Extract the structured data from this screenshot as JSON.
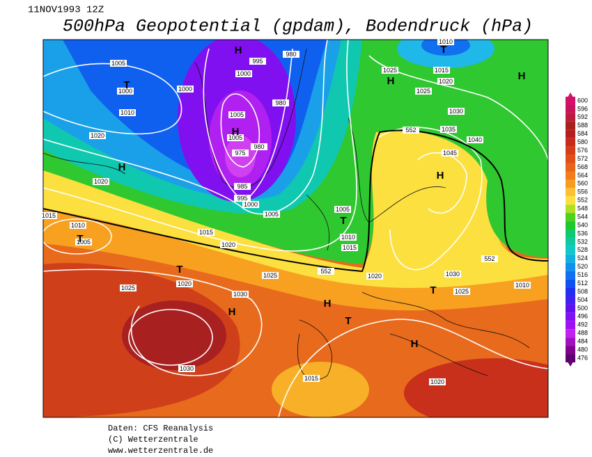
{
  "header": {
    "date": "11NOV1993 12Z",
    "title": "500hPa Geopotential (gpdam), Bodendruck (hPa)"
  },
  "map": {
    "isobar_labels": [
      1005,
      1000,
      1000,
      1010,
      1020,
      1020,
      1015,
      1010,
      1005,
      995,
      980,
      1000,
      980,
      1005,
      1005,
      980,
      975,
      985,
      995,
      1000,
      1005,
      1015,
      1020,
      1025,
      1020,
      1025,
      1030,
      1030,
      1015,
      1020,
      552,
      1005,
      1010,
      1015,
      1025,
      1015,
      1020,
      1025,
      1030,
      1035,
      1040,
      1045,
      552,
      1020,
      1030,
      1025,
      1010,
      552,
      1010
    ],
    "centers": [
      "H",
      "T",
      "H",
      "H",
      "T",
      "T",
      "H",
      "H",
      "T",
      "H",
      "T",
      "H",
      "T",
      "H",
      "T",
      "H"
    ]
  },
  "colorbar": {
    "levels": [
      600,
      596,
      592,
      588,
      584,
      580,
      576,
      572,
      568,
      564,
      560,
      556,
      552,
      548,
      544,
      540,
      536,
      532,
      528,
      524,
      520,
      516,
      512,
      508,
      504,
      500,
      496,
      492,
      488,
      484,
      480,
      476
    ],
    "colors": [
      "#d4106a",
      "#c8145a",
      "#b81e3c",
      "#a8201e",
      "#b41e1e",
      "#c82a1a",
      "#d63c16",
      "#e05016",
      "#e86418",
      "#f07c1c",
      "#f89c20",
      "#fcc030",
      "#fce040",
      "#b0e020",
      "#50d020",
      "#20c830",
      "#10c870",
      "#10c8a0",
      "#10c8c8",
      "#10b0e0",
      "#1090f0",
      "#1070f0",
      "#1050f0",
      "#2030f0",
      "#4020f0",
      "#6010f0",
      "#8010f0",
      "#a010f0",
      "#c020f0",
      "#a010c0",
      "#800090",
      "#600070"
    ]
  },
  "footer": {
    "source": "Daten: CFS Reanalysis",
    "copyright": "(C) Wetterzentrale",
    "url": "www.wetterzentrale.de"
  }
}
